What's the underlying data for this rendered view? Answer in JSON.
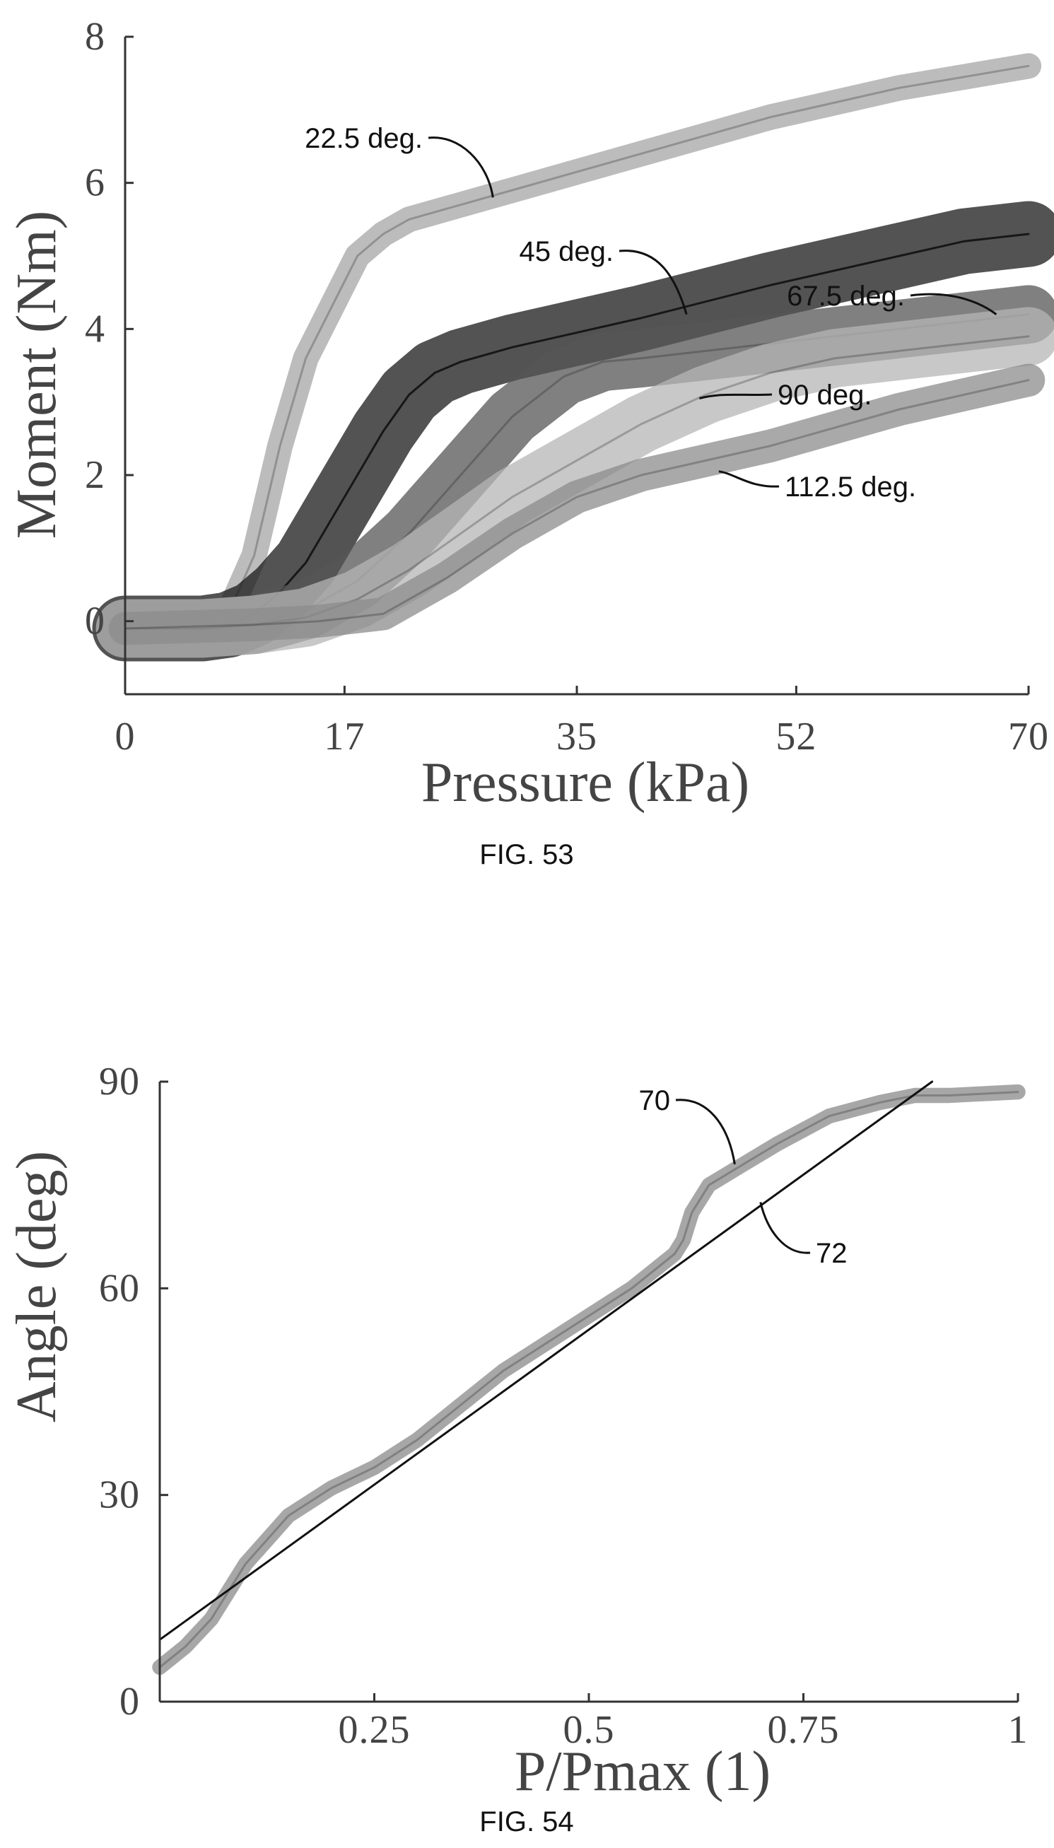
{
  "figures": [
    {
      "caption": "FIG. 53",
      "chart_data": {
        "type": "line",
        "title": "",
        "xlabel": "Pressure (kPa)",
        "ylabel": "Moment (Nm)",
        "xlim": [
          0,
          70
        ],
        "ylim": [
          -1,
          8
        ],
        "xticks": [
          "0",
          "17",
          "35",
          "52",
          "70"
        ],
        "xtick_values": [
          0,
          17,
          35,
          52,
          70
        ],
        "yticks": [
          "0",
          "2",
          "4",
          "6",
          "8"
        ],
        "ytick_values": [
          0,
          2,
          4,
          6,
          8
        ],
        "grid": false,
        "legend": "none",
        "series": [
          {
            "name": "22.5 deg.",
            "color": "#a6a6a6",
            "band_width": 0.35,
            "x": [
              0,
              6,
              8,
              10,
              12,
              14,
              16,
              18,
              20,
              22,
              30,
              40,
              50,
              60,
              70
            ],
            "y": [
              -0.1,
              -0.1,
              0.1,
              0.9,
              2.4,
              3.6,
              4.3,
              5.0,
              5.3,
              5.5,
              5.9,
              6.4,
              6.9,
              7.3,
              7.6
            ]
          },
          {
            "name": "45 deg.",
            "color": "#1a1a1a",
            "band_width": 0.9,
            "x": [
              0,
              6,
              8,
              10,
              12,
              14,
              16,
              18,
              20,
              22,
              24,
              26,
              30,
              40,
              50,
              60,
              65,
              70
            ],
            "y": [
              -0.1,
              -0.1,
              -0.05,
              0.1,
              0.4,
              0.8,
              1.4,
              2.0,
              2.6,
              3.1,
              3.4,
              3.55,
              3.75,
              4.15,
              4.6,
              5.0,
              5.2,
              5.3
            ]
          },
          {
            "name": "67.5 deg.",
            "color": "#555555",
            "band_width": 0.8,
            "x": [
              0,
              6,
              10,
              14,
              18,
              22,
              26,
              30,
              34,
              37,
              40,
              50,
              60,
              70
            ],
            "y": [
              -0.1,
              -0.1,
              -0.05,
              0.15,
              0.55,
              1.2,
              2.0,
              2.8,
              3.35,
              3.55,
              3.6,
              3.8,
              4.0,
              4.2
            ]
          },
          {
            "name": "90 deg.",
            "color": "#b5b5b5",
            "band_width": 0.8,
            "x": [
              0,
              6,
              10,
              14,
              18,
              22,
              26,
              30,
              35,
              40,
              45,
              50,
              55,
              60,
              70
            ],
            "y": [
              -0.1,
              -0.1,
              -0.05,
              0.05,
              0.3,
              0.7,
              1.2,
              1.7,
              2.2,
              2.7,
              3.1,
              3.4,
              3.6,
              3.7,
              3.9
            ]
          },
          {
            "name": "112.5 deg.",
            "color": "#8c8c8c",
            "band_width": 0.45,
            "x": [
              0,
              10,
              15,
              20,
              25,
              30,
              35,
              40,
              50,
              60,
              70
            ],
            "y": [
              -0.1,
              -0.05,
              0.0,
              0.1,
              0.6,
              1.2,
              1.7,
              2.0,
              2.4,
              2.9,
              3.3
            ]
          }
        ],
        "annotations": [
          {
            "text": "22.5 deg.",
            "target": [
              28.5,
              5.8
            ]
          },
          {
            "text": "45 deg.",
            "target": [
              43.5,
              4.2
            ]
          },
          {
            "text": "67.5 deg.",
            "target": [
              67.5,
              4.2
            ]
          },
          {
            "text": "90 deg.",
            "target": [
              44.5,
              3.05
            ]
          },
          {
            "text": "112.5 deg.",
            "target": [
              46.0,
              2.05
            ]
          }
        ]
      }
    },
    {
      "caption": "FIG. 54",
      "chart_data": {
        "type": "line",
        "title": "",
        "xlabel": "P/Pmax (1)",
        "ylabel": "Angle (deg)",
        "xlim": [
          0,
          1
        ],
        "ylim": [
          0,
          90
        ],
        "xticks": [
          "0.25",
          "0.5",
          "0.75",
          "1"
        ],
        "xtick_values": [
          0.25,
          0.5,
          0.75,
          1
        ],
        "yticks": [
          "0",
          "30",
          "60",
          "90"
        ],
        "ytick_values": [
          0,
          30,
          60,
          90
        ],
        "grid": false,
        "legend": "none",
        "series": [
          {
            "name": "70",
            "color": "#8a8a8a",
            "band_width": 2.2,
            "x": [
              0.0,
              0.03,
              0.06,
              0.1,
              0.15,
              0.2,
              0.25,
              0.3,
              0.35,
              0.4,
              0.45,
              0.5,
              0.55,
              0.6,
              0.61,
              0.62,
              0.64,
              0.68,
              0.72,
              0.78,
              0.84,
              0.88,
              0.92,
              1.0
            ],
            "y": [
              5,
              8,
              12,
              20,
              27,
              31,
              34,
              38,
              43,
              48,
              52,
              56,
              60,
              65,
              67,
              71,
              75,
              78,
              81,
              85,
              87,
              88,
              88,
              88.5
            ]
          },
          {
            "name": "72",
            "color": "#1a1a1a",
            "band_width": 0,
            "x": [
              0.0,
              0.9
            ],
            "y": [
              9,
              90
            ]
          }
        ],
        "annotations": [
          {
            "text": "70",
            "target": [
              0.67,
              78
            ]
          },
          {
            "text": "72",
            "target": [
              0.7,
              72.5
            ]
          }
        ]
      }
    }
  ]
}
